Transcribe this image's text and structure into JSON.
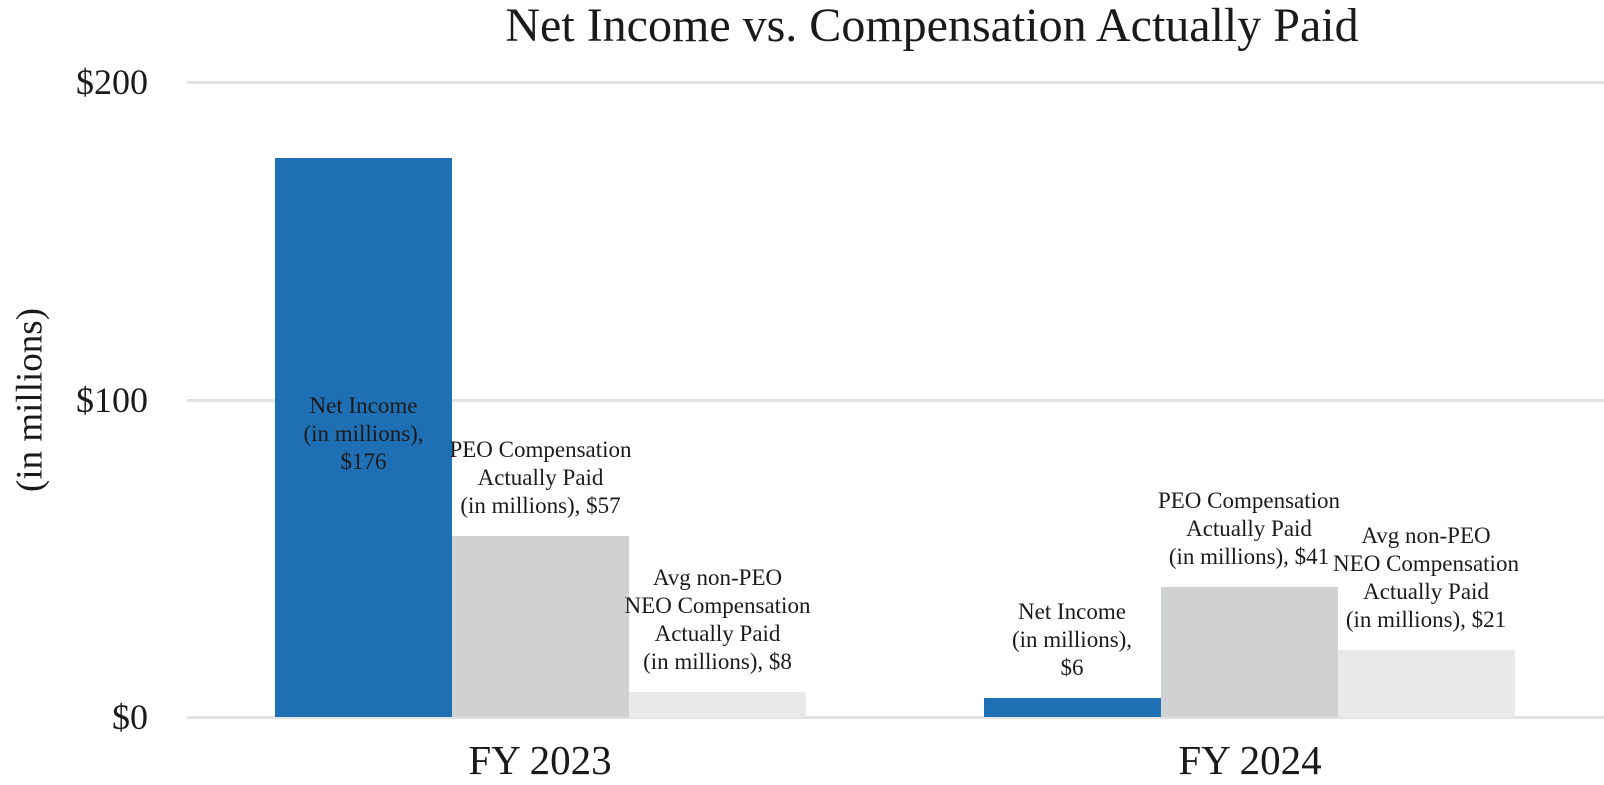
{
  "colors": {
    "gridline": "#e2e2e2",
    "text": "#1a1a1a",
    "net_income_blue": "#1f6fb5",
    "peo_gray": "#d0d1d2",
    "neo_light_gray": "#e9eaea"
  },
  "chart_data": {
    "type": "bar",
    "title": "Net Income vs. Compensation Actually Paid",
    "ylabel": "(in millions)",
    "xlabel": "",
    "categories": [
      "FY 2023",
      "FY 2024"
    ],
    "y_ticks": [
      "$0",
      "$100",
      "$200"
    ],
    "ylim": [
      0,
      200
    ],
    "grid": "horizontal gridlines at $0, $100, $200",
    "legend_position": "none (data labels on bars)",
    "series": [
      {
        "name": "Net Income (in millions)",
        "color": "#1f6fb5",
        "values": [
          176,
          6
        ],
        "label_lines": [
          [
            "Net Income",
            "(in millions),",
            "$176"
          ],
          [
            "Net Income",
            "(in millions),",
            "$6"
          ]
        ],
        "label_placement": [
          "inside",
          "above"
        ]
      },
      {
        "name": "PEO Compensation Actually Paid (in millions)",
        "color": "#d0d1d2",
        "values": [
          57,
          41
        ],
        "label_lines": [
          [
            "PEO Compensation",
            "Actually Paid",
            "(in millions), $57"
          ],
          [
            "PEO Compensation",
            "Actually Paid",
            "(in millions), $41"
          ]
        ],
        "label_placement": [
          "above",
          "above"
        ]
      },
      {
        "name": "Avg non-PEO NEO Compensation Actually Paid (in millions)",
        "color": "#e9eaea",
        "values": [
          8,
          21
        ],
        "label_lines": [
          [
            "Avg non-PEO",
            "NEO Compensation",
            "Actually Paid",
            "(in millions), $8"
          ],
          [
            "Avg non-PEO",
            "NEO Compensation",
            "Actually Paid",
            "(in millions), $21"
          ]
        ],
        "label_placement": [
          "above",
          "above"
        ]
      }
    ]
  }
}
